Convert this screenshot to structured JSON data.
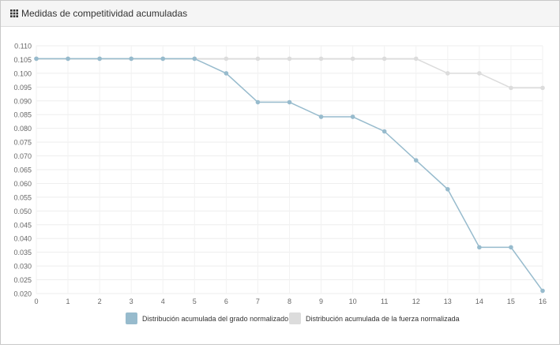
{
  "panel": {
    "title": "Medidas de competitividad acumuladas",
    "icon": "grid-icon"
  },
  "chart_data": {
    "type": "line",
    "title": "",
    "xlabel": "",
    "ylabel": "",
    "x": [
      0,
      1,
      2,
      3,
      4,
      5,
      6,
      7,
      8,
      9,
      10,
      11,
      12,
      13,
      14,
      15,
      16
    ],
    "xlim": [
      0,
      16
    ],
    "ylim": [
      0.02,
      0.11
    ],
    "y_ticks": [
      "0.110",
      "0.105",
      "0.100",
      "0.095",
      "0.090",
      "0.085",
      "0.080",
      "0.075",
      "0.070",
      "0.065",
      "0.060",
      "0.055",
      "0.050",
      "0.045",
      "0.040",
      "0.035",
      "0.030",
      "0.025",
      "0.020"
    ],
    "x_ticks": [
      "0",
      "1",
      "2",
      "3",
      "4",
      "5",
      "6",
      "7",
      "8",
      "9",
      "10",
      "11",
      "12",
      "13",
      "14",
      "15",
      "16"
    ],
    "grid": true,
    "legend_position": "bottom",
    "series": [
      {
        "name": "Distribución acumulada del grado normalizado",
        "color": "#97bbcd",
        "values": [
          0.1053,
          0.1053,
          0.1053,
          0.1053,
          0.1053,
          0.1053,
          0.1,
          0.0895,
          0.0895,
          0.0842,
          0.0842,
          0.0789,
          0.0684,
          0.0579,
          0.0368,
          0.0368,
          0.021
        ]
      },
      {
        "name": "Distribución acumulada de la fuerza normalizada",
        "color": "#dcdcdc",
        "values": [
          0.1053,
          0.1053,
          0.1053,
          0.1053,
          0.1053,
          0.1053,
          0.1053,
          0.1053,
          0.1053,
          0.1053,
          0.1053,
          0.1053,
          0.1053,
          0.1,
          0.1,
          0.0947,
          0.0947
        ]
      }
    ]
  }
}
